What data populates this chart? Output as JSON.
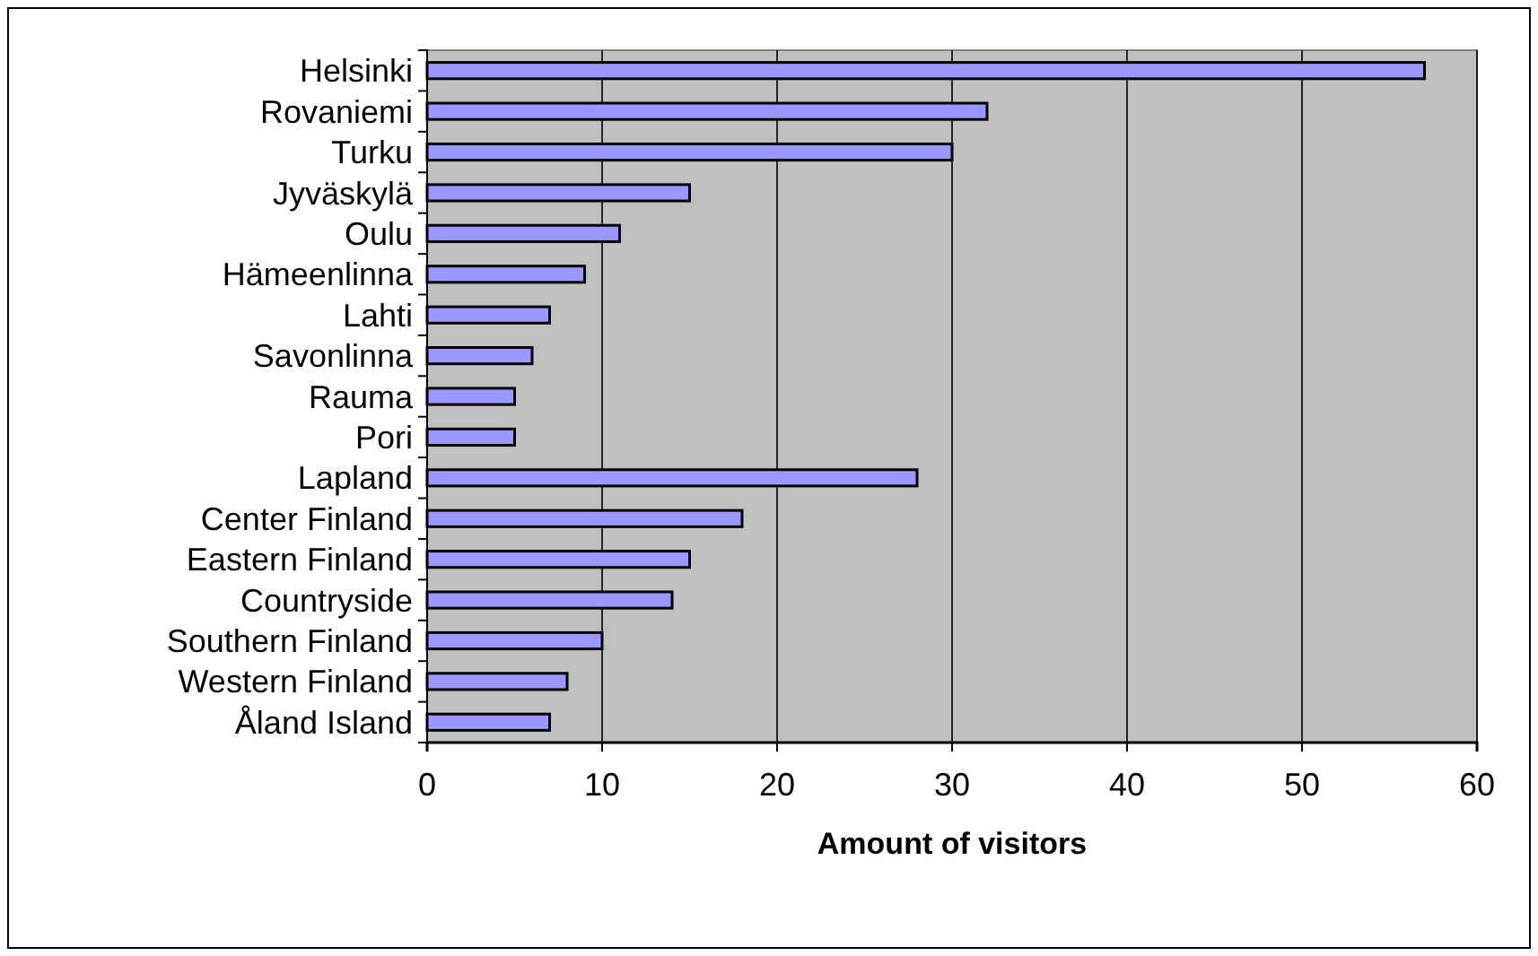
{
  "chart_data": {
    "type": "bar",
    "orientation": "horizontal",
    "categories": [
      "Helsinki",
      "Rovaniemi",
      "Turku",
      "Jyväskylä",
      "Oulu",
      "Hämeenlinna",
      "Lahti",
      "Savonlinna",
      "Rauma",
      "Pori",
      "Lapland",
      "Center Finland",
      "Eastern Finland",
      "Countryside",
      "Southern Finland",
      "Western Finland",
      "Åland Island"
    ],
    "values": [
      57,
      32,
      30,
      15,
      11,
      9,
      7,
      6,
      5,
      5,
      28,
      18,
      15,
      14,
      10,
      8,
      7
    ],
    "color": "#9999ff",
    "xlabel": "Amount of visitors",
    "xlim": [
      0,
      60
    ],
    "xticks": [
      0,
      10,
      20,
      30,
      40,
      50,
      60
    ],
    "grid": "x"
  }
}
